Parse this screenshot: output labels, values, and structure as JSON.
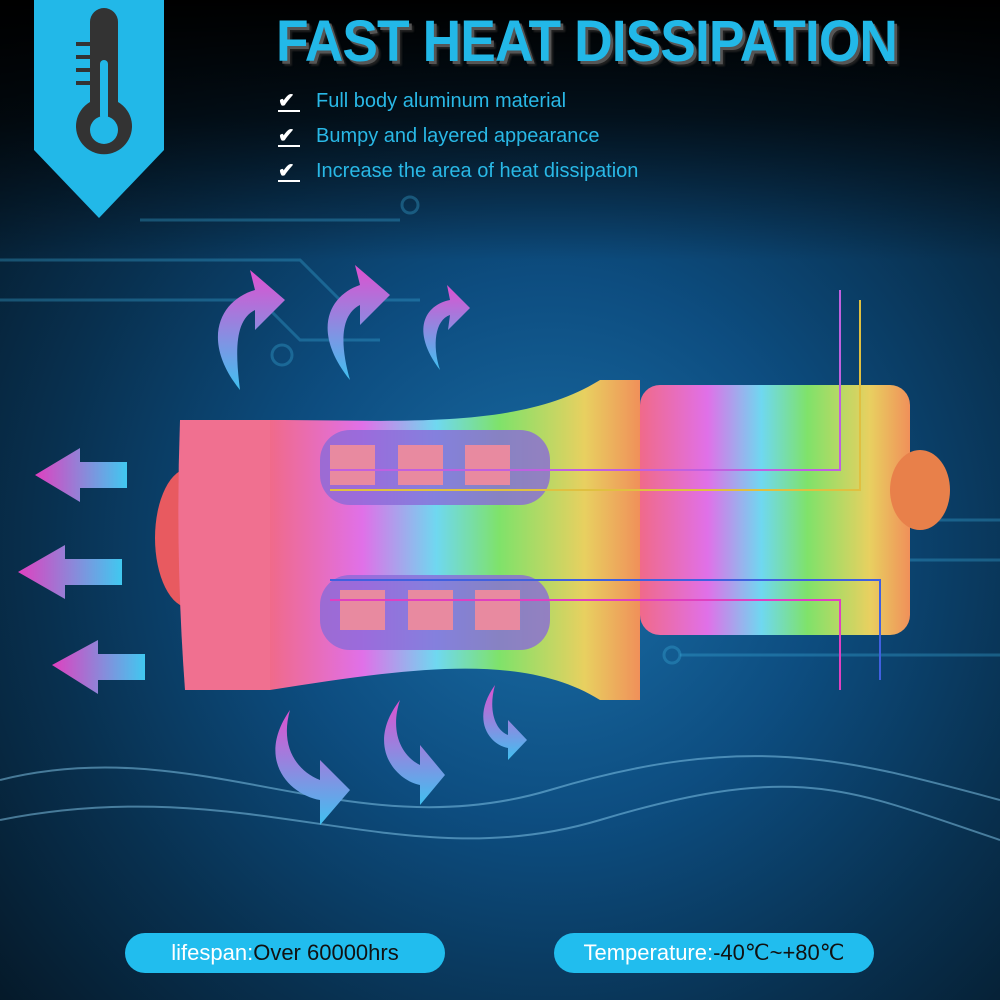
{
  "header": {
    "title": "FAST HEAT DISSIPATION",
    "icon": "thermometer-icon",
    "accent": "#22b8e8"
  },
  "features": [
    {
      "icon": "checkbox-icon",
      "text": "Full body aluminum material"
    },
    {
      "icon": "checkbox-icon",
      "text": "Bumpy and layered appearance"
    },
    {
      "icon": "checkbox-icon",
      "text": "Increase the area of heat dissipation"
    }
  ],
  "specs": {
    "lifespan": {
      "label": "lifespan:",
      "value": "Over 60000hrs"
    },
    "temperature": {
      "label": "Temperature:",
      "value": "-40℃~+80℃"
    }
  }
}
